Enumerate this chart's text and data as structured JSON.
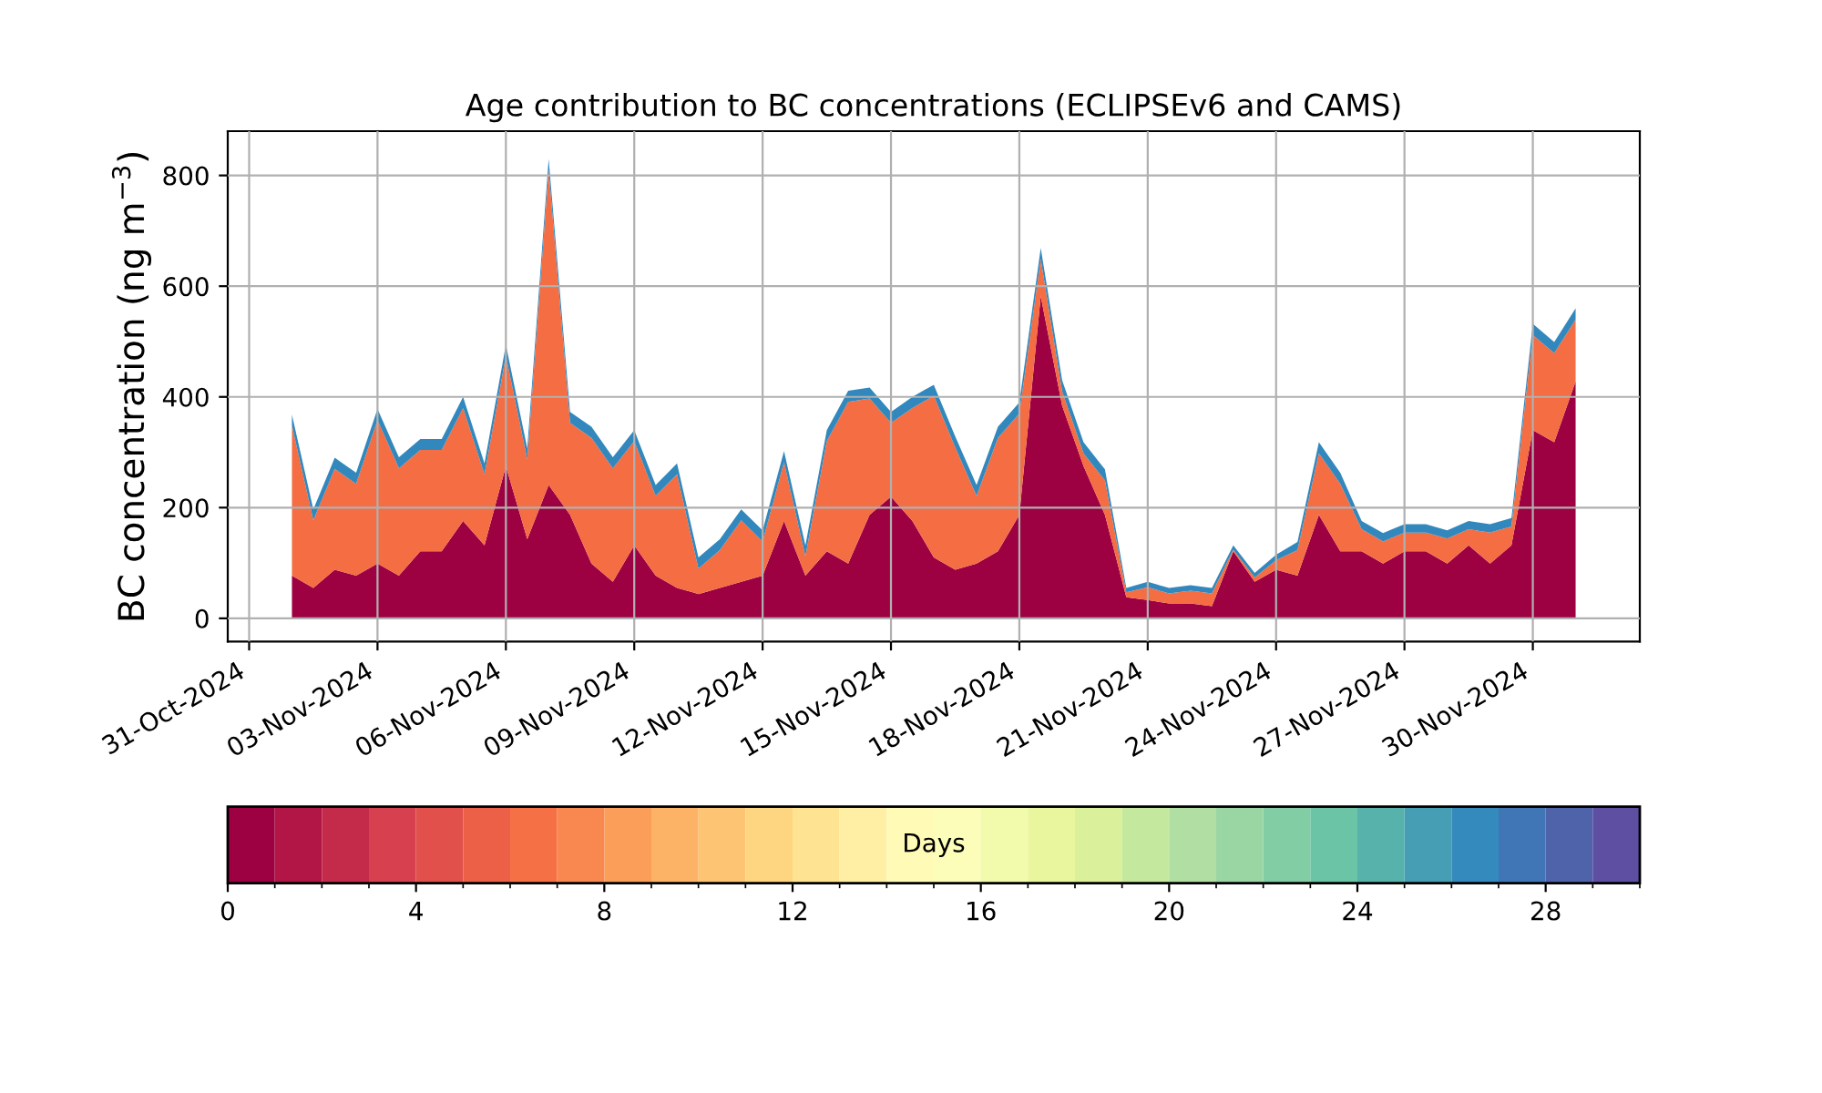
{
  "chart_data": {
    "type": "area",
    "stacked": true,
    "title": "Age contribution to BC concentrations (ECLIPSEv6 and CAMS)",
    "ylabel": "BC concentration (ng m$^{−3}$)",
    "clabel": "Days",
    "clim": [
      0,
      30
    ],
    "cticks": [
      0,
      4,
      8,
      12,
      16,
      20,
      24,
      28
    ],
    "x": [
      "2024-11-01T00:00",
      "2024-11-01T12:00",
      "2024-11-02T00:00",
      "2024-11-02T12:00",
      "2024-11-03T00:00",
      "2024-11-03T12:00",
      "2024-11-04T00:00",
      "2024-11-04T12:00",
      "2024-11-05T00:00",
      "2024-11-05T12:00",
      "2024-11-06T00:00",
      "2024-11-06T12:00",
      "2024-11-07T00:00",
      "2024-11-07T12:00",
      "2024-11-08T00:00",
      "2024-11-08T12:00",
      "2024-11-09T00:00",
      "2024-11-09T12:00",
      "2024-11-10T00:00",
      "2024-11-10T12:00",
      "2024-11-11T00:00",
      "2024-11-11T12:00",
      "2024-11-12T00:00",
      "2024-11-12T12:00",
      "2024-11-13T00:00",
      "2024-11-13T12:00",
      "2024-11-14T00:00",
      "2024-11-14T12:00",
      "2024-11-15T00:00",
      "2024-11-15T12:00",
      "2024-11-16T00:00",
      "2024-11-16T12:00",
      "2024-11-17T00:00",
      "2024-11-17T12:00",
      "2024-11-18T00:00",
      "2024-11-18T12:00",
      "2024-11-19T00:00",
      "2024-11-19T12:00",
      "2024-11-20T00:00",
      "2024-11-20T12:00",
      "2024-11-21T00:00",
      "2024-11-21T12:00",
      "2024-11-22T00:00",
      "2024-11-22T12:00",
      "2024-11-23T00:00",
      "2024-11-23T12:00",
      "2024-11-24T00:00",
      "2024-11-24T12:00",
      "2024-11-25T00:00",
      "2024-11-25T12:00",
      "2024-11-26T00:00",
      "2024-11-26T12:00",
      "2024-11-27T00:00",
      "2024-11-27T12:00",
      "2024-11-28T00:00",
      "2024-11-28T12:00",
      "2024-11-29T00:00",
      "2024-11-29T12:00",
      "2024-11-30T00:00",
      "2024-11-30T12:00",
      "2024-12-01T00:00"
    ],
    "series": [
      {
        "color": "#9e0142",
        "values": [
          77,
          55,
          88,
          77,
          99,
          77,
          121,
          121,
          176,
          132,
          275,
          143,
          241,
          187,
          99,
          66,
          132,
          77,
          55,
          44,
          55,
          66,
          77,
          176,
          77,
          121,
          99,
          187,
          220,
          176,
          110,
          88,
          99,
          121,
          187,
          582,
          384,
          275,
          187,
          38,
          33,
          27,
          27,
          22,
          121,
          66,
          88,
          77,
          187,
          121,
          121,
          99,
          121,
          121,
          99,
          132,
          99,
          132,
          340,
          318,
          428
        ]
      },
      {
        "color": "#f46d43",
        "values": [
          271,
          122,
          182,
          166,
          259,
          194,
          183,
          183,
          204,
          128,
          199,
          144,
          569,
          166,
          227,
          205,
          188,
          144,
          205,
          46,
          68,
          111,
          62,
          106,
          35,
          199,
          292,
          210,
          133,
          204,
          292,
          221,
          122,
          205,
          183,
          67,
          26,
          23,
          62,
          9,
          23,
          18,
          23,
          23,
          3,
          8,
          17,
          46,
          111,
          122,
          40,
          40,
          34,
          34,
          45,
          29,
          56,
          34,
          172,
          161,
          112
        ]
      },
      {
        "color": "#3288bd",
        "values": [
          20,
          20,
          20,
          20,
          20,
          20,
          20,
          20,
          20,
          20,
          20,
          20,
          20,
          20,
          20,
          20,
          20,
          20,
          20,
          20,
          20,
          20,
          20,
          20,
          20,
          20,
          20,
          20,
          20,
          20,
          20,
          20,
          20,
          20,
          20,
          20,
          20,
          20,
          20,
          8,
          10,
          10,
          10,
          10,
          8,
          8,
          10,
          15,
          20,
          20,
          15,
          15,
          15,
          15,
          15,
          15,
          15,
          15,
          20,
          20,
          20
        ]
      }
    ],
    "xlim": [
      "2024-10-30T12:00",
      "2024-12-02T12:00"
    ],
    "xticks": [
      {
        "value": "2024-10-31",
        "label": "31-Oct-2024"
      },
      {
        "value": "2024-11-03",
        "label": "03-Nov-2024"
      },
      {
        "value": "2024-11-06",
        "label": "06-Nov-2024"
      },
      {
        "value": "2024-11-09",
        "label": "09-Nov-2024"
      },
      {
        "value": "2024-11-12",
        "label": "12-Nov-2024"
      },
      {
        "value": "2024-11-15",
        "label": "15-Nov-2024"
      },
      {
        "value": "2024-11-18",
        "label": "18-Nov-2024"
      },
      {
        "value": "2024-11-21",
        "label": "21-Nov-2024"
      },
      {
        "value": "2024-11-24",
        "label": "24-Nov-2024"
      },
      {
        "value": "2024-11-27",
        "label": "27-Nov-2024"
      },
      {
        "value": "2024-11-30",
        "label": "30-Nov-2024"
      }
    ],
    "ylim": [
      -42,
      880
    ],
    "yticks": [
      0,
      200,
      400,
      600,
      800
    ],
    "grid": true
  }
}
